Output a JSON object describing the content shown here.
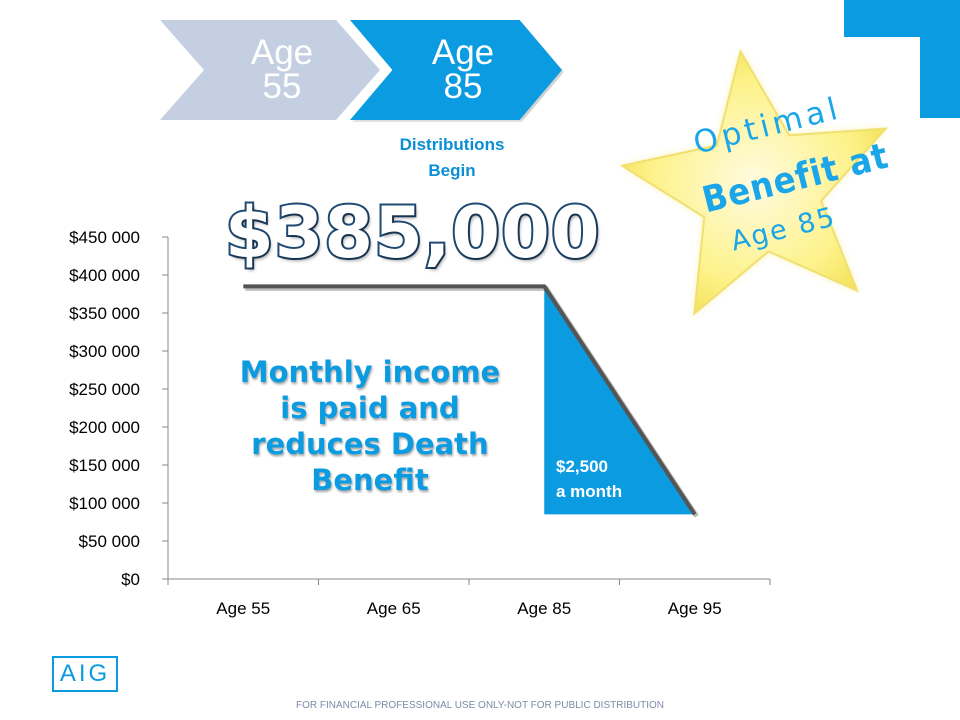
{
  "steps": [
    {
      "label_line1": "Age",
      "label_line2": "55",
      "color": "#c4d0e2"
    },
    {
      "label_line1": "Age",
      "label_line2": "85",
      "color": "#0a9be0"
    }
  ],
  "distributions_line1": "Distributions",
  "distributions_line2": "Begin",
  "highlight_amount": "$385,000",
  "income_line1": "Monthly income",
  "income_line2": "is paid and",
  "income_line3": "reduces Death",
  "income_line4": "Benefit",
  "monthly_line1": "$2,500",
  "monthly_line2": "a month",
  "star": {
    "line1": "Optimal",
    "line2": "Benefit at",
    "line3": "Age 85"
  },
  "logo_text": "AIG",
  "footer_text": "FOR FINANCIAL PROFESSIONAL USE ONLY-NOT FOR PUBLIC DISTRIBUTION",
  "colors": {
    "accent": "#0a9be0",
    "line": "#555555",
    "star": "#fdf28a"
  },
  "chart_data": {
    "type": "line",
    "categories": [
      "Age 55",
      "Age 65",
      "Age 85",
      "Age 95"
    ],
    "ylim": [
      0,
      450000
    ],
    "yticks": [
      0,
      50000,
      100000,
      150000,
      200000,
      250000,
      300000,
      350000,
      400000,
      450000
    ],
    "ytick_labels": [
      "$0",
      "$50 000",
      "$100 000",
      "$150 000",
      "$200 000",
      "$250 000",
      "$300 000",
      "$350 000",
      "$400 000",
      "$450 000"
    ],
    "series": [
      {
        "values": [
          385000,
          385000,
          385000,
          85000
        ]
      }
    ]
  }
}
